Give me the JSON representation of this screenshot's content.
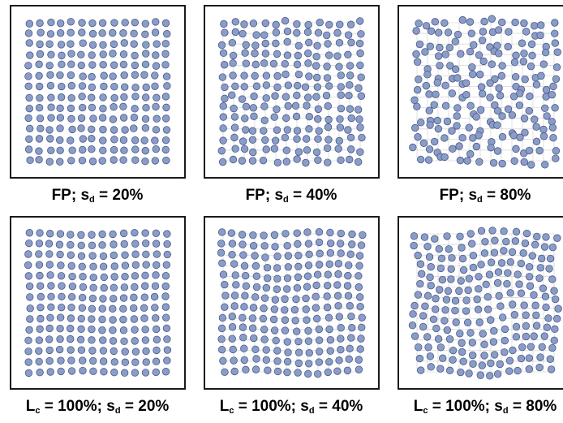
{
  "panels": [
    {
      "caption": {
        "main": "FP; s",
        "sub": "d",
        "tail": " = 20%"
      },
      "disorder": 0.2,
      "correlated": false
    },
    {
      "caption": {
        "main": "FP; s",
        "sub": "d",
        "tail": " = 40%"
      },
      "disorder": 0.4,
      "correlated": false
    },
    {
      "caption": {
        "main": "FP; s",
        "sub": "d",
        "tail": " = 80%"
      },
      "disorder": 0.8,
      "correlated": false
    },
    {
      "caption": {
        "pre": "L",
        "presub": "c",
        "main": " = 100%; s",
        "sub": "d",
        "tail": " = 20%"
      },
      "disorder": 0.2,
      "correlated": true
    },
    {
      "caption": {
        "pre": "L",
        "presub": "c",
        "main": " = 100%; s",
        "sub": "d",
        "tail": " = 40%"
      },
      "disorder": 0.4,
      "correlated": true
    },
    {
      "caption": {
        "pre": "L",
        "presub": "c",
        "main": " = 100%; s",
        "sub": "d",
        "tail": " = 80%"
      },
      "disorder": 0.8,
      "correlated": true
    }
  ],
  "lattice": {
    "rows": 14,
    "cols": 14
  },
  "colors": {
    "atom_fill": "#8a9cc8",
    "atom_stroke": "#4a5a88",
    "grid_line": "#cccccc",
    "frame": "#1a1a1a"
  }
}
